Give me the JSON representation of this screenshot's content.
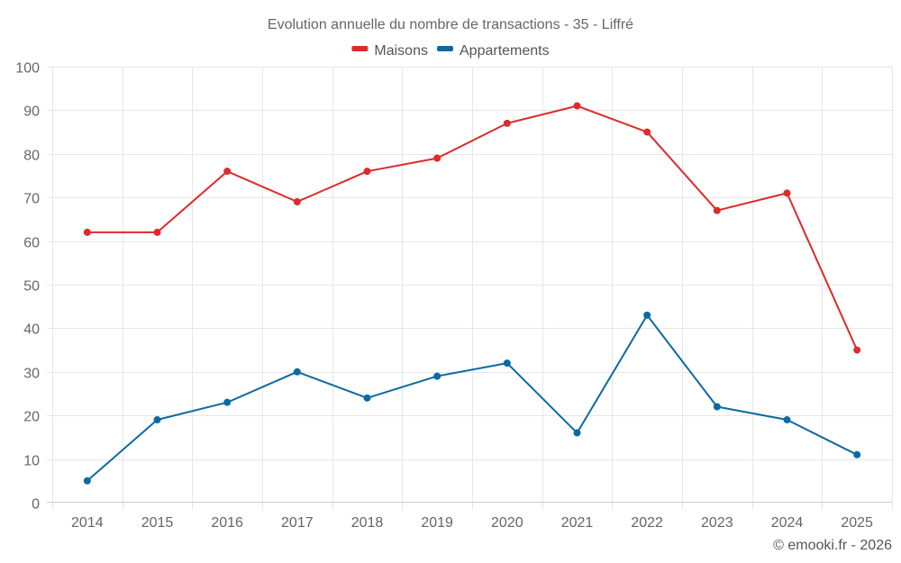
{
  "chart_data": {
    "type": "line",
    "title": "Evolution annuelle du nombre de transactions - 35 - Liffré",
    "xlabel": "",
    "ylabel": "",
    "categories": [
      "2014",
      "2015",
      "2016",
      "2017",
      "2018",
      "2019",
      "2020",
      "2021",
      "2022",
      "2023",
      "2024",
      "2025"
    ],
    "series": [
      {
        "name": "Maisons",
        "color": "#dd2a2a",
        "values": [
          62,
          62,
          76,
          69,
          76,
          79,
          87,
          91,
          85,
          67,
          71,
          35
        ]
      },
      {
        "name": "Appartements",
        "color": "#0b6aa2",
        "values": [
          5,
          19,
          23,
          30,
          24,
          29,
          32,
          16,
          43,
          22,
          19,
          11
        ]
      }
    ],
    "ylim": [
      0,
      100
    ],
    "yticks": [
      0,
      10,
      20,
      30,
      40,
      50,
      60,
      70,
      80,
      90,
      100
    ],
    "grid": true,
    "legend_position": "top-center",
    "markers": true
  },
  "credit": "© emooki.fr - 2026"
}
